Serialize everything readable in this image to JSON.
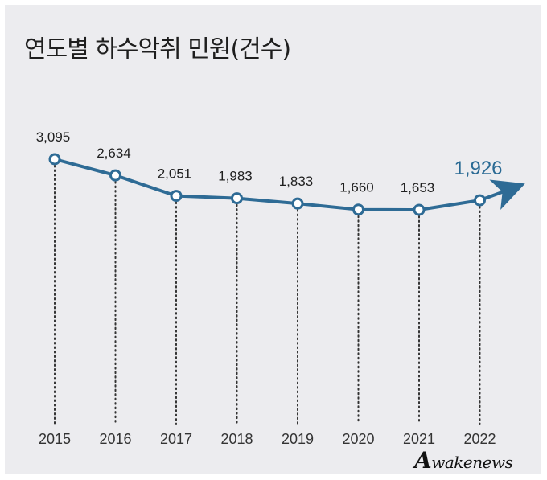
{
  "title": "연도별 하수악취 민원(건수)",
  "colors": {
    "line": "#2e6b95",
    "highlight": "#2a6a94",
    "panel": "#ececef"
  },
  "chart_data": {
    "type": "line",
    "title": "연도별 하수악취 민원(건수)",
    "categories": [
      "2015",
      "2016",
      "2017",
      "2018",
      "2019",
      "2020",
      "2021",
      "2022"
    ],
    "values": [
      3095,
      2634,
      2051,
      1983,
      1833,
      1660,
      1653,
      1926
    ],
    "value_labels": [
      "3,095",
      "2,634",
      "2,051",
      "1,983",
      "1,833",
      "1,660",
      "1,653",
      "1,926"
    ],
    "highlight_index": 7,
    "grid": false,
    "legend": "none"
  },
  "watermark": {
    "initial": "A",
    "rest": "wakenews"
  }
}
